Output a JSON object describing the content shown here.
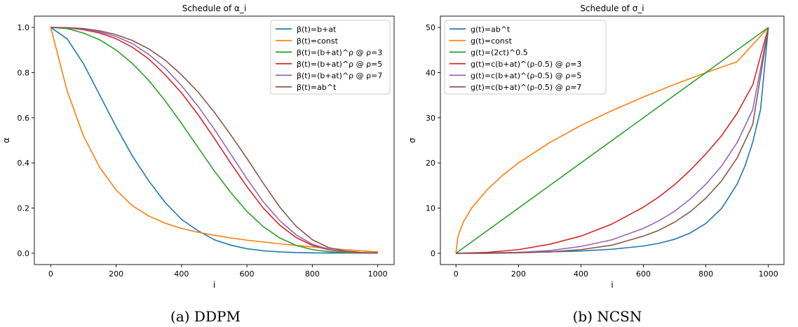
{
  "figure": {
    "captions": [
      "(a) DDPM",
      "(b) NCSN"
    ]
  },
  "chart_data": [
    {
      "type": "line",
      "title": "Schedule of α_i",
      "xlabel": "i",
      "ylabel": "α",
      "xlim": [
        -50,
        1050
      ],
      "ylim": [
        -0.05,
        1.05
      ],
      "xticks": [
        0,
        200,
        400,
        600,
        800,
        1000
      ],
      "yticks": [
        0.0,
        0.2,
        0.4,
        0.6,
        0.8,
        1.0
      ],
      "ytick_decimals": 1,
      "grid": false,
      "legend": "top-right",
      "series": [
        {
          "name": "β(t)=b+at",
          "color": "#1f77b4",
          "x": [
            0,
            50,
            100,
            150,
            200,
            250,
            300,
            350,
            400,
            450,
            500,
            550,
            600,
            650,
            700,
            750,
            800,
            850,
            900,
            950,
            1000
          ],
          "y": [
            1.0,
            0.95,
            0.84,
            0.7,
            0.56,
            0.43,
            0.32,
            0.225,
            0.15,
            0.1,
            0.06,
            0.036,
            0.02,
            0.011,
            0.006,
            0.003,
            0.002,
            0.001,
            0.001,
            0.001,
            0.001
          ]
        },
        {
          "name": "β(t)=const",
          "color": "#ff7f0e",
          "x": [
            0,
            50,
            100,
            150,
            200,
            250,
            300,
            350,
            400,
            450,
            500,
            550,
            600,
            650,
            700,
            750,
            800,
            850,
            900,
            950,
            1000
          ],
          "y": [
            1.0,
            0.72,
            0.52,
            0.38,
            0.28,
            0.21,
            0.165,
            0.133,
            0.11,
            0.093,
            0.08,
            0.068,
            0.058,
            0.05,
            0.042,
            0.035,
            0.028,
            0.022,
            0.016,
            0.011,
            0.006
          ]
        },
        {
          "name": "β(t)=(b+at)^ρ @ ρ=3",
          "color": "#2ca02c",
          "x": [
            0,
            50,
            100,
            150,
            200,
            250,
            300,
            350,
            400,
            450,
            500,
            550,
            600,
            650,
            700,
            750,
            800,
            850,
            900,
            950,
            1000
          ],
          "y": [
            1.0,
            0.995,
            0.975,
            0.945,
            0.9,
            0.84,
            0.765,
            0.675,
            0.575,
            0.47,
            0.365,
            0.27,
            0.185,
            0.118,
            0.068,
            0.035,
            0.016,
            0.007,
            0.003,
            0.001,
            0.001
          ]
        },
        {
          "name": "β(t)=(b+at)^ρ @ ρ=5",
          "color": "#d62728",
          "x": [
            0,
            50,
            100,
            150,
            200,
            250,
            300,
            350,
            400,
            450,
            500,
            550,
            600,
            650,
            700,
            750,
            800,
            850,
            900,
            950,
            1000
          ],
          "y": [
            1.0,
            0.998,
            0.99,
            0.975,
            0.95,
            0.912,
            0.86,
            0.79,
            0.71,
            0.615,
            0.51,
            0.4,
            0.295,
            0.2,
            0.125,
            0.07,
            0.035,
            0.015,
            0.006,
            0.002,
            0.001
          ]
        },
        {
          "name": "β(t)=(b+at)^ρ @ ρ=7",
          "color": "#9467bd",
          "x": [
            0,
            50,
            100,
            150,
            200,
            250,
            300,
            350,
            400,
            450,
            500,
            550,
            600,
            650,
            700,
            750,
            800,
            850,
            900,
            950,
            1000
          ],
          "y": [
            1.0,
            0.999,
            0.993,
            0.98,
            0.96,
            0.928,
            0.88,
            0.82,
            0.742,
            0.652,
            0.55,
            0.44,
            0.33,
            0.228,
            0.145,
            0.082,
            0.04,
            0.017,
            0.007,
            0.003,
            0.001
          ]
        },
        {
          "name": "β(t)=ab^t",
          "color": "#8c564b",
          "x": [
            0,
            50,
            100,
            150,
            200,
            250,
            300,
            350,
            400,
            450,
            500,
            550,
            600,
            650,
            700,
            750,
            800,
            850,
            900,
            950,
            1000
          ],
          "y": [
            1.0,
            0.999,
            0.995,
            0.985,
            0.968,
            0.942,
            0.905,
            0.855,
            0.79,
            0.715,
            0.625,
            0.525,
            0.42,
            0.31,
            0.205,
            0.12,
            0.06,
            0.025,
            0.01,
            0.004,
            0.002
          ]
        }
      ]
    },
    {
      "type": "line",
      "title": "Schedule of σ_i",
      "xlabel": "i",
      "ylabel": "σ",
      "xlim": [
        -50,
        1050
      ],
      "ylim": [
        -2.5,
        52.5
      ],
      "xticks": [
        0,
        200,
        400,
        600,
        800,
        1000
      ],
      "yticks": [
        0,
        10,
        20,
        30,
        40,
        50
      ],
      "ytick_decimals": 0,
      "grid": false,
      "legend": "top-left",
      "series": [
        {
          "name": "g(t)=ab^t",
          "color": "#1f77b4",
          "x": [
            0,
            100,
            200,
            300,
            400,
            500,
            600,
            650,
            700,
            750,
            800,
            850,
            900,
            925,
            950,
            975,
            1000
          ],
          "y": [
            0.0,
            0.1,
            0.2,
            0.3,
            0.5,
            0.9,
            1.6,
            2.2,
            3.1,
            4.5,
            6.6,
            9.9,
            15.3,
            19.3,
            24.6,
            31.8,
            50.0
          ]
        },
        {
          "name": "g(t)=const",
          "color": "#ff7f0e",
          "x": [
            0,
            5,
            10,
            25,
            50,
            100,
            150,
            200,
            300,
            400,
            500,
            600,
            700,
            800,
            900,
            1000
          ],
          "y": [
            0.0,
            3.2,
            4.5,
            7.1,
            10.0,
            14.1,
            17.3,
            20.0,
            24.5,
            28.3,
            31.6,
            34.6,
            37.4,
            40.0,
            42.4,
            50.0
          ]
        },
        {
          "name": "g(t)=(2ct)^0.5",
          "color": "#2ca02c",
          "x": [
            0,
            1000
          ],
          "y": [
            0.0,
            50.0
          ]
        },
        {
          "name": "g(t)=c(b+at)^(ρ-0.5) @ ρ=3",
          "color": "#d62728",
          "x": [
            0,
            100,
            200,
            300,
            400,
            500,
            600,
            650,
            700,
            750,
            800,
            850,
            900,
            950,
            1000
          ],
          "y": [
            0.0,
            0.2,
            0.8,
            2.0,
            3.8,
            6.5,
            10.2,
            12.5,
            15.2,
            18.4,
            22.0,
            26.0,
            31.0,
            37.3,
            50.0
          ]
        },
        {
          "name": "g(t)=c(b+at)^(ρ-0.5) @ ρ=5",
          "color": "#9467bd",
          "x": [
            0,
            100,
            200,
            300,
            400,
            500,
            600,
            650,
            700,
            750,
            800,
            850,
            900,
            950,
            1000
          ],
          "y": [
            0.0,
            0.0,
            0.2,
            0.6,
            1.5,
            3.0,
            5.5,
            7.2,
            9.3,
            12.0,
            15.3,
            19.3,
            24.5,
            31.8,
            50.0
          ]
        },
        {
          "name": "g(t)=c(b+at)^(ρ-0.5) @ ρ=7",
          "color": "#8c564b",
          "x": [
            0,
            100,
            200,
            300,
            400,
            500,
            600,
            650,
            700,
            750,
            800,
            850,
            900,
            950,
            1000
          ],
          "y": [
            0.0,
            0.0,
            0.1,
            0.3,
            0.8,
            1.8,
            3.8,
            5.1,
            6.9,
            9.2,
            12.2,
            16.0,
            21.1,
            28.5,
            50.0
          ]
        }
      ]
    }
  ]
}
